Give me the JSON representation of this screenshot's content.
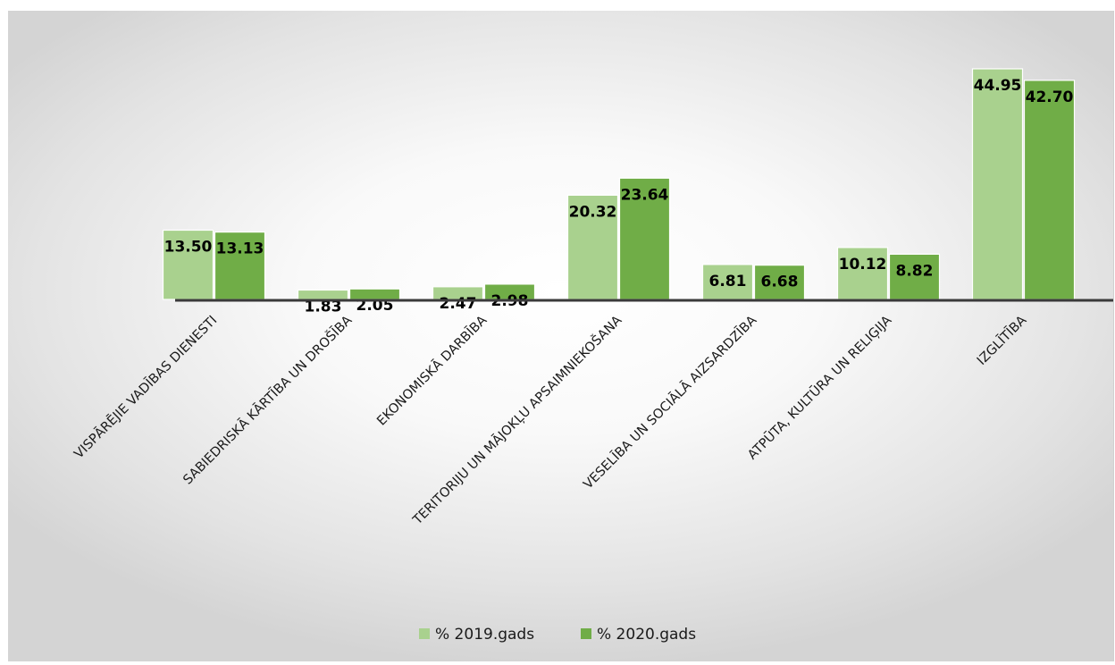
{
  "chart_data": {
    "type": "bar",
    "categories": [
      "VISPĀRĒJIE VADĪBAS DIENESTI",
      "SABIEDRISKĀ KĀRTĪBA UN DROŠĪBA",
      "EKONOMISKĀ DARBĪBA",
      "TERITORIJU UN MĀJOKĻU APSAIMNIEKOŠANA",
      "VESELĪBA UN SOCIĀLĀ AIZSARDZĪBA",
      "ATPŪTA, KULTŪRA UN RELIĢIJA",
      "IZGLĪTĪBA"
    ],
    "series": [
      {
        "name": "%   2019.gads",
        "color": "#a9d18e",
        "values": [
          13.5,
          1.83,
          2.47,
          20.32,
          6.81,
          10.12,
          44.95
        ],
        "labels": [
          "13.50",
          "1.83",
          "2.47",
          "20.32",
          "6.81",
          "10.12",
          "44.95"
        ]
      },
      {
        "name": "%   2020.gads",
        "color": "#70ad47",
        "values": [
          13.13,
          2.05,
          2.98,
          23.64,
          6.68,
          8.82,
          42.7
        ],
        "labels": [
          "13.13",
          "2.05",
          "2.98",
          "23.64",
          "6.68",
          "8.82",
          "42.70"
        ]
      }
    ],
    "title": "",
    "xlabel": "",
    "ylabel": "",
    "ylim": [
      0,
      50
    ],
    "grid": false,
    "legend_position": "bottom"
  }
}
